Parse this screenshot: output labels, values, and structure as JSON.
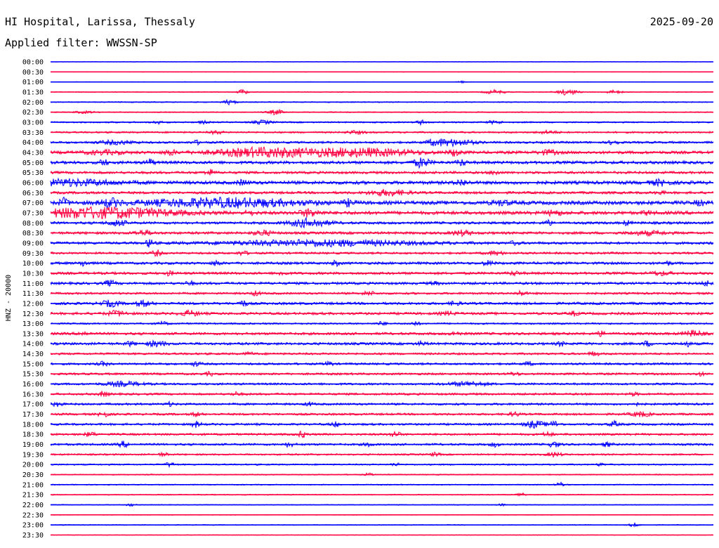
{
  "header": {
    "station": "HI Hospital, Larissa, Thessaly",
    "date": "2025-09-20",
    "filter": "Applied filter: WWSSN-SP"
  },
  "chart_data": {
    "type": "line",
    "title": "HI Hospital, Larissa, Thessaly",
    "subtitle": "Applied filter: WWSSN-SP",
    "date": "2025-09-20",
    "ylabel": "HNZ - 20000",
    "xlabel": "",
    "grid": false,
    "colors": [
      "#0000ff",
      "#ff0040"
    ],
    "rows": [
      {
        "time": "00:00",
        "noise": 0.12,
        "events": []
      },
      {
        "time": "00:30",
        "noise": 0.12,
        "events": []
      },
      {
        "time": "01:00",
        "noise": 0.12,
        "events": [
          [
            0.62,
            0.3,
            0.004
          ]
        ]
      },
      {
        "time": "01:30",
        "noise": 0.2,
        "events": [
          [
            0.29,
            0.8,
            0.005
          ],
          [
            0.67,
            0.6,
            0.01
          ],
          [
            0.78,
            0.9,
            0.01
          ],
          [
            0.85,
            0.5,
            0.008
          ]
        ]
      },
      {
        "time": "02:00",
        "noise": 0.25,
        "events": [
          [
            0.27,
            0.7,
            0.006
          ]
        ]
      },
      {
        "time": "02:30",
        "noise": 0.25,
        "events": [
          [
            0.34,
            0.7,
            0.008
          ],
          [
            0.05,
            0.3,
            0.01
          ]
        ]
      },
      {
        "time": "03:00",
        "noise": 0.35,
        "events": [
          [
            0.16,
            0.5,
            0.005
          ],
          [
            0.23,
            0.4,
            0.005
          ],
          [
            0.32,
            0.5,
            0.01
          ],
          [
            0.56,
            0.6,
            0.005
          ],
          [
            0.67,
            0.4,
            0.008
          ]
        ]
      },
      {
        "time": "03:30",
        "noise": 0.4,
        "events": [
          [
            0.25,
            0.5,
            0.006
          ],
          [
            0.46,
            0.4,
            0.01
          ],
          [
            0.75,
            0.4,
            0.01
          ]
        ]
      },
      {
        "time": "04:00",
        "noise": 0.5,
        "events": [
          [
            0.1,
            0.5,
            0.02
          ],
          [
            0.22,
            0.5,
            0.005
          ],
          [
            0.58,
            0.6,
            0.01
          ],
          [
            0.61,
            0.9,
            0.02
          ],
          [
            0.85,
            0.8,
            0.005
          ]
        ]
      },
      {
        "time": "04:30",
        "noise": 0.7,
        "events": [
          [
            0.08,
            0.5,
            0.02
          ],
          [
            0.18,
            0.7,
            0.006
          ],
          [
            0.32,
            1.2,
            0.05
          ],
          [
            0.46,
            1.1,
            0.06
          ],
          [
            0.61,
            0.9,
            0.006
          ],
          [
            0.75,
            0.6,
            0.01
          ]
        ]
      },
      {
        "time": "05:00",
        "noise": 0.7,
        "events": [
          [
            0.08,
            0.9,
            0.004
          ],
          [
            0.15,
            1.0,
            0.004
          ],
          [
            0.56,
            1.3,
            0.008
          ],
          [
            0.62,
            0.8,
            0.005
          ]
        ]
      },
      {
        "time": "05:30",
        "noise": 0.6,
        "events": [
          [
            0.24,
            0.8,
            0.005
          ],
          [
            0.67,
            0.6,
            0.005
          ]
        ]
      },
      {
        "time": "06:00",
        "noise": 0.8,
        "events": [
          [
            0.03,
            0.8,
            0.05
          ],
          [
            0.29,
            0.7,
            0.005
          ],
          [
            0.62,
            0.8,
            0.006
          ],
          [
            0.92,
            0.7,
            0.01
          ]
        ]
      },
      {
        "time": "06:30",
        "noise": 0.6,
        "events": [
          [
            0.51,
            0.8,
            0.02
          ],
          [
            0.92,
            0.4,
            0.005
          ]
        ]
      },
      {
        "time": "07:00",
        "noise": 0.9,
        "events": [
          [
            0.02,
            1.1,
            0.005
          ],
          [
            0.09,
            1.0,
            0.01
          ],
          [
            0.26,
            1.2,
            0.08
          ],
          [
            0.45,
            0.8,
            0.005
          ],
          [
            0.68,
            0.6,
            0.01
          ],
          [
            0.98,
            0.6,
            0.005
          ]
        ]
      },
      {
        "time": "07:30",
        "noise": 0.8,
        "events": [
          [
            0.08,
            1.6,
            0.07
          ],
          [
            0.3,
            0.5,
            0.005
          ],
          [
            0.39,
            1.0,
            0.01
          ],
          [
            0.76,
            0.7,
            0.008
          ],
          [
            0.9,
            0.5,
            0.005
          ]
        ]
      },
      {
        "time": "08:00",
        "noise": 0.6,
        "events": [
          [
            0.1,
            0.8,
            0.01
          ],
          [
            0.39,
            1.2,
            0.02
          ],
          [
            0.75,
            0.8,
            0.004
          ],
          [
            0.87,
            0.6,
            0.004
          ]
        ]
      },
      {
        "time": "08:30",
        "noise": 0.6,
        "events": [
          [
            0.14,
            0.6,
            0.01
          ],
          [
            0.32,
            0.7,
            0.01
          ],
          [
            0.62,
            0.7,
            0.01
          ],
          [
            0.9,
            0.5,
            0.02
          ]
        ]
      },
      {
        "time": "09:00",
        "noise": 0.6,
        "events": [
          [
            0.15,
            1.2,
            0.004
          ],
          [
            0.41,
            0.8,
            0.1
          ],
          [
            0.7,
            0.5,
            0.005
          ]
        ]
      },
      {
        "time": "09:30",
        "noise": 0.5,
        "events": [
          [
            0.16,
            0.8,
            0.005
          ],
          [
            0.29,
            0.6,
            0.005
          ],
          [
            0.67,
            0.5,
            0.01
          ]
        ]
      },
      {
        "time": "10:00",
        "noise": 0.6,
        "events": [
          [
            0.05,
            0.8,
            0.004
          ],
          [
            0.25,
            0.8,
            0.004
          ],
          [
            0.43,
            0.7,
            0.004
          ],
          [
            0.66,
            0.6,
            0.006
          ],
          [
            0.93,
            0.6,
            0.004
          ]
        ]
      },
      {
        "time": "10:30",
        "noise": 0.6,
        "events": [
          [
            0.18,
            0.6,
            0.004
          ],
          [
            0.35,
            0.6,
            0.004
          ],
          [
            0.7,
            0.5,
            0.006
          ],
          [
            0.92,
            0.5,
            0.01
          ]
        ]
      },
      {
        "time": "11:00",
        "noise": 0.6,
        "events": [
          [
            0.09,
            0.8,
            0.005
          ],
          [
            0.21,
            0.5,
            0.005
          ],
          [
            0.58,
            0.4,
            0.005
          ],
          [
            0.99,
            0.8,
            0.004
          ]
        ]
      },
      {
        "time": "11:30",
        "noise": 0.5,
        "events": [
          [
            0.31,
            0.6,
            0.005
          ],
          [
            0.48,
            0.6,
            0.006
          ],
          [
            0.71,
            0.7,
            0.005
          ]
        ]
      },
      {
        "time": "12:00",
        "noise": 0.6,
        "events": [
          [
            0.09,
            0.8,
            0.01
          ],
          [
            0.14,
            0.8,
            0.008
          ],
          [
            0.29,
            0.9,
            0.004
          ],
          [
            0.61,
            0.6,
            0.005
          ]
        ]
      },
      {
        "time": "12:30",
        "noise": 0.6,
        "events": [
          [
            0.1,
            0.7,
            0.01
          ],
          [
            0.21,
            0.7,
            0.01
          ],
          [
            0.6,
            0.5,
            0.008
          ],
          [
            0.79,
            0.6,
            0.004
          ]
        ]
      },
      {
        "time": "13:00",
        "noise": 0.4,
        "events": [
          [
            0.17,
            0.5,
            0.005
          ],
          [
            0.5,
            0.5,
            0.005
          ],
          [
            0.55,
            0.5,
            0.005
          ]
        ]
      },
      {
        "time": "13:30",
        "noise": 0.6,
        "events": [
          [
            0.05,
            0.6,
            0.005
          ],
          [
            0.61,
            0.5,
            0.005
          ],
          [
            0.83,
            0.6,
            0.005
          ],
          [
            0.97,
            0.8,
            0.01
          ]
        ]
      },
      {
        "time": "14:00",
        "noise": 0.6,
        "events": [
          [
            0.12,
            0.6,
            0.005
          ],
          [
            0.16,
            0.7,
            0.01
          ],
          [
            0.56,
            0.5,
            0.005
          ],
          [
            0.77,
            0.6,
            0.004
          ],
          [
            0.9,
            0.7,
            0.004
          ],
          [
            0.96,
            0.7,
            0.004
          ]
        ]
      },
      {
        "time": "14:30",
        "noise": 0.5,
        "events": [
          [
            0.3,
            0.4,
            0.005
          ],
          [
            0.82,
            0.6,
            0.005
          ]
        ]
      },
      {
        "time": "15:00",
        "noise": 0.5,
        "events": [
          [
            0.08,
            0.6,
            0.005
          ],
          [
            0.22,
            0.6,
            0.005
          ],
          [
            0.42,
            0.6,
            0.004
          ],
          [
            0.72,
            0.5,
            0.005
          ]
        ]
      },
      {
        "time": "15:30",
        "noise": 0.5,
        "events": [
          [
            0.24,
            0.5,
            0.004
          ],
          [
            0.7,
            0.5,
            0.005
          ],
          [
            0.98,
            0.5,
            0.004
          ]
        ]
      },
      {
        "time": "16:00",
        "noise": 0.5,
        "events": [
          [
            0.11,
            0.6,
            0.02
          ],
          [
            0.63,
            0.6,
            0.02
          ]
        ]
      },
      {
        "time": "16:30",
        "noise": 0.5,
        "events": [
          [
            0.08,
            0.7,
            0.005
          ],
          [
            0.28,
            0.5,
            0.005
          ],
          [
            0.88,
            0.4,
            0.005
          ]
        ]
      },
      {
        "time": "17:00",
        "noise": 0.5,
        "events": [
          [
            0.01,
            0.6,
            0.005
          ],
          [
            0.18,
            0.5,
            0.004
          ],
          [
            0.39,
            0.6,
            0.004
          ],
          [
            0.88,
            0.6,
            0.004
          ]
        ]
      },
      {
        "time": "17:30",
        "noise": 0.5,
        "events": [
          [
            0.08,
            0.8,
            0.005
          ],
          [
            0.22,
            0.6,
            0.005
          ],
          [
            0.7,
            0.6,
            0.005
          ],
          [
            0.89,
            0.7,
            0.01
          ]
        ]
      },
      {
        "time": "18:00",
        "noise": 0.5,
        "events": [
          [
            0.22,
            0.8,
            0.005
          ],
          [
            0.43,
            0.6,
            0.005
          ],
          [
            0.73,
            1.0,
            0.01
          ],
          [
            0.76,
            0.8,
            0.006
          ],
          [
            0.85,
            0.8,
            0.005
          ]
        ]
      },
      {
        "time": "18:30",
        "noise": 0.5,
        "events": [
          [
            0.06,
            0.7,
            0.005
          ],
          [
            0.38,
            0.8,
            0.005
          ],
          [
            0.52,
            0.8,
            0.005
          ],
          [
            0.75,
            0.6,
            0.005
          ]
        ]
      },
      {
        "time": "19:00",
        "noise": 0.5,
        "events": [
          [
            0.11,
            0.8,
            0.005
          ],
          [
            0.36,
            0.6,
            0.005
          ],
          [
            0.48,
            0.5,
            0.005
          ],
          [
            0.67,
            0.6,
            0.005
          ],
          [
            0.76,
            0.8,
            0.006
          ],
          [
            0.84,
            0.6,
            0.005
          ]
        ]
      },
      {
        "time": "19:30",
        "noise": 0.4,
        "events": [
          [
            0.17,
            0.5,
            0.005
          ],
          [
            0.58,
            0.5,
            0.005
          ],
          [
            0.76,
            0.6,
            0.008
          ]
        ]
      },
      {
        "time": "20:00",
        "noise": 0.35,
        "events": [
          [
            0.18,
            0.6,
            0.005
          ],
          [
            0.52,
            0.4,
            0.005
          ],
          [
            0.83,
            0.4,
            0.004
          ]
        ]
      },
      {
        "time": "20:30",
        "noise": 0.25,
        "events": [
          [
            0.48,
            0.4,
            0.004
          ]
        ]
      },
      {
        "time": "21:00",
        "noise": 0.25,
        "events": [
          [
            0.77,
            0.6,
            0.005
          ]
        ]
      },
      {
        "time": "21:30",
        "noise": 0.25,
        "events": [
          [
            0.71,
            0.6,
            0.005
          ]
        ]
      },
      {
        "time": "22:00",
        "noise": 0.2,
        "events": [
          [
            0.12,
            0.4,
            0.004
          ],
          [
            0.68,
            0.3,
            0.004
          ]
        ]
      },
      {
        "time": "22:30",
        "noise": 0.15,
        "events": []
      },
      {
        "time": "23:00",
        "noise": 0.2,
        "events": [
          [
            0.88,
            0.6,
            0.005
          ]
        ]
      },
      {
        "time": "23:30",
        "noise": 0.15,
        "events": []
      }
    ]
  }
}
